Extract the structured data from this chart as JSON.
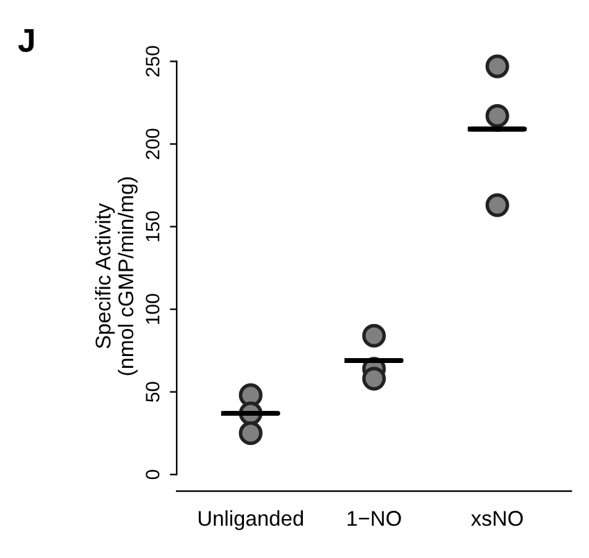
{
  "chart_data": {
    "type": "scatter",
    "title": "J",
    "ylabel": "Specific Activity\n(nmol cGMP/min/mg)",
    "categories": [
      "Unliganded",
      "1−NO",
      "xsNO"
    ],
    "series": [
      {
        "marker": "circle",
        "color": "#808080",
        "x": [
          "Unliganded",
          "Unliganded",
          "Unliganded",
          "1−NO",
          "1−NO",
          "1−NO",
          "xsNO",
          "xsNO",
          "xsNO"
        ],
        "values": [
          48,
          37,
          25,
          84,
          64,
          58,
          247,
          217,
          163
        ]
      },
      {
        "type": "box",
        "color": "#000000",
        "boxes": [
          {
            "low": 37,
            "q1": 37,
            "median": 37,
            "q3": 37,
            "high": 37
          },
          {
            "low": 69,
            "q1": 69,
            "median": 69,
            "q3": 69,
            "high": 69
          },
          {
            "low": 209,
            "q1": 209,
            "median": 209,
            "q3": 209,
            "high": 209
          }
        ]
      }
    ],
    "ylim": [
      -10,
      250
    ],
    "yticks": [
      0,
      50,
      100,
      150,
      200,
      250
    ],
    "grid": false
  }
}
